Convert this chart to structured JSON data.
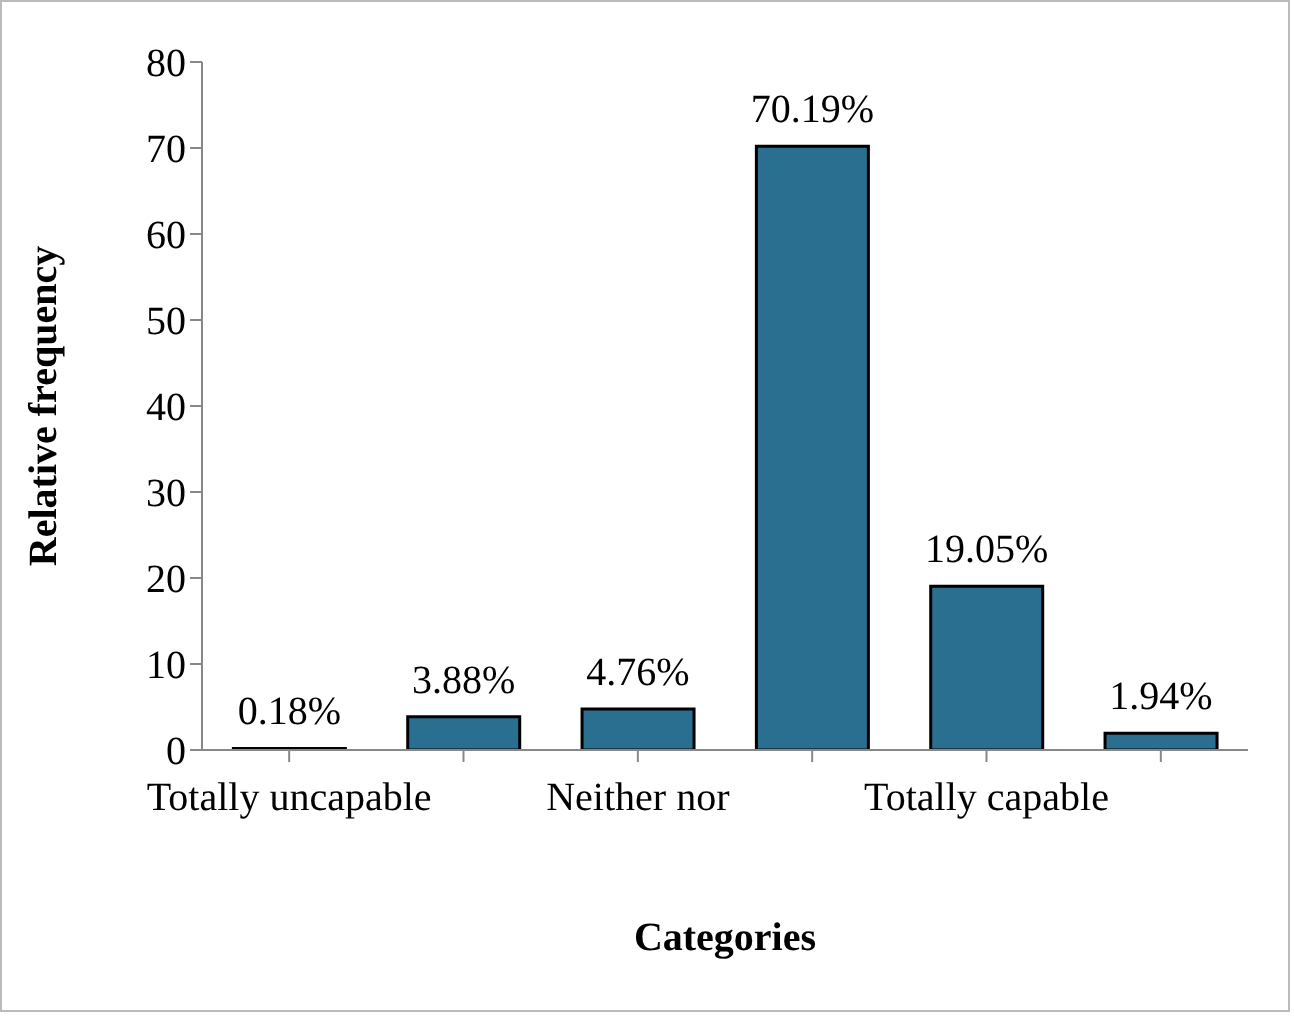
{
  "chart_data": {
    "type": "bar",
    "xlabel": "Categories",
    "ylabel": "Relative frequency",
    "categories": [
      "Totally uncapable",
      null,
      "Neither nor",
      null,
      "Totally capable",
      null
    ],
    "values": [
      0.18,
      3.88,
      4.76,
      70.19,
      19.05,
      1.94
    ],
    "value_labels": [
      "0.18%",
      "3.88%",
      "4.76%",
      "70.19%",
      "19.05%",
      "1.94%"
    ],
    "color": "#2a6f8f",
    "ylim": [
      0,
      80
    ],
    "yticks": [
      0,
      10,
      20,
      30,
      40,
      50,
      60,
      70,
      80
    ],
    "grid": false,
    "legend": false
  }
}
